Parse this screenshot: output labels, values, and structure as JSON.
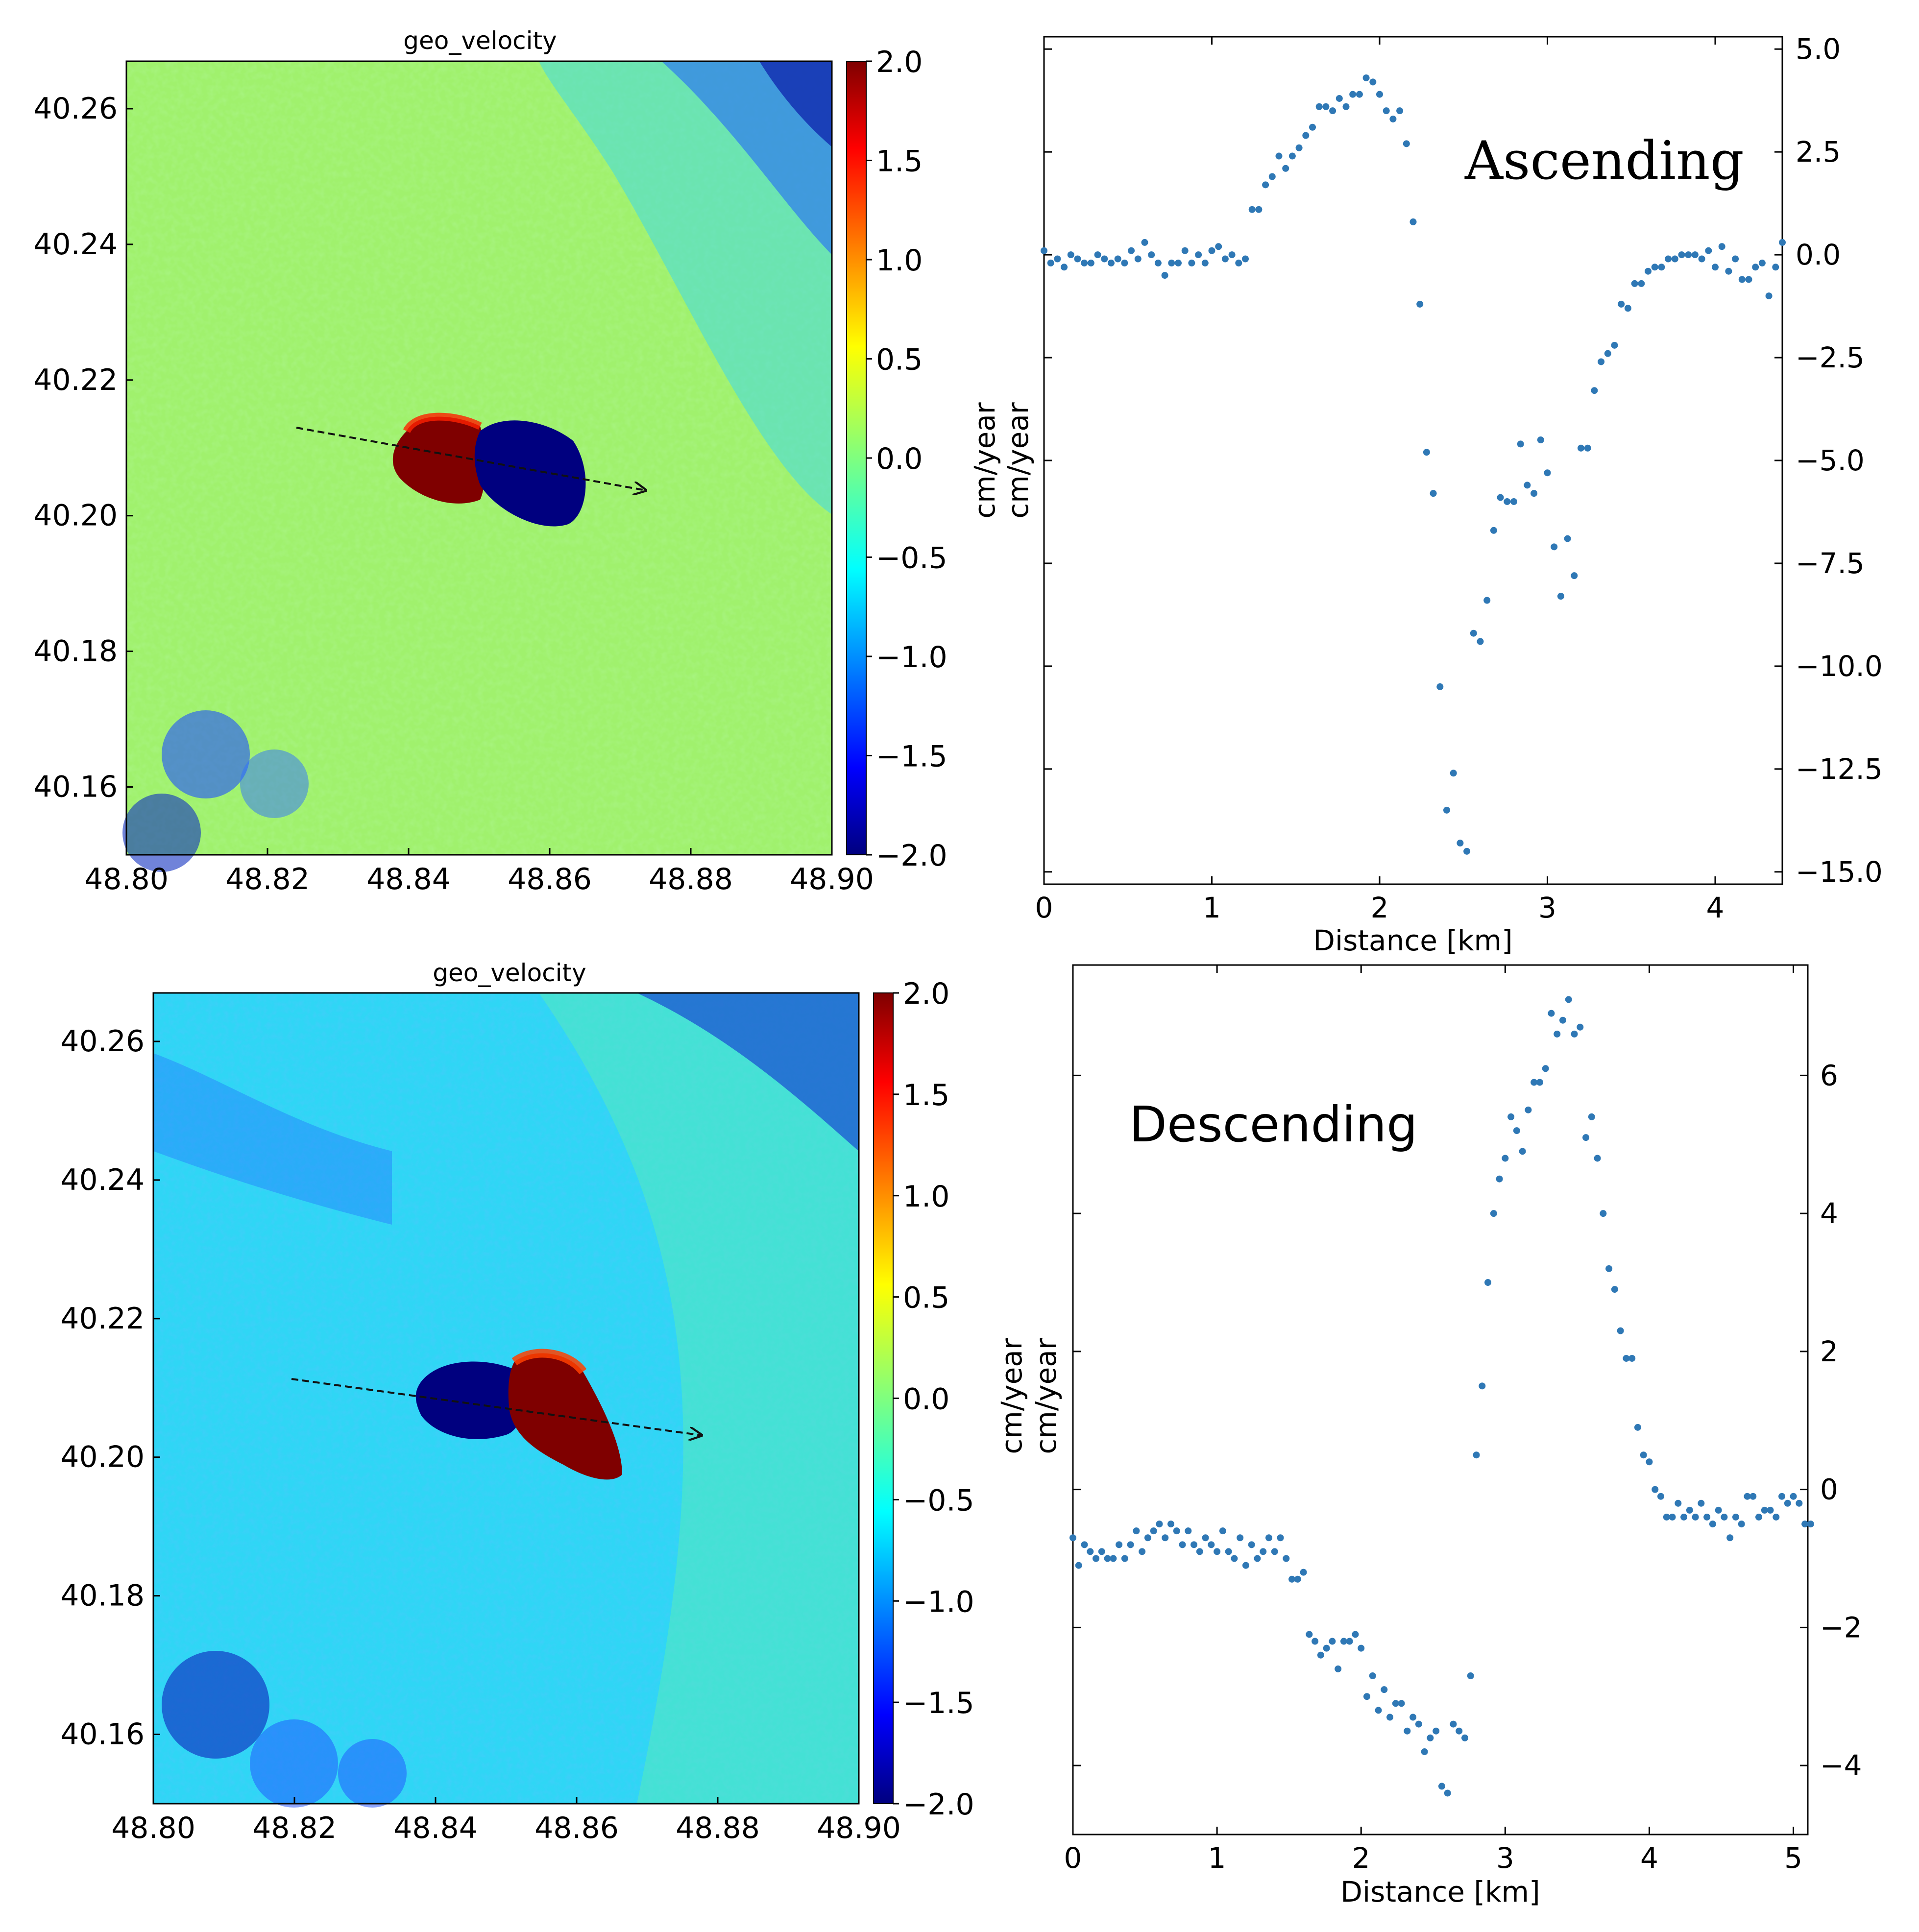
{
  "colors": {
    "point": "#2f78b5",
    "axis": "#000000",
    "arrow": "#111111",
    "colormap_jet": [
      "#00007f",
      "#0000ff",
      "#007fff",
      "#00ffff",
      "#7fff7f",
      "#ffff00",
      "#ff7f00",
      "#ff0000",
      "#7f0000"
    ]
  },
  "chart_data": [
    {
      "id": "map-ascending",
      "type": "heatmap",
      "title": "geo_velocity",
      "x_ticks": [
        "48.80",
        "48.82",
        "48.84",
        "48.86",
        "48.88",
        "48.90"
      ],
      "x_range": [
        48.8,
        48.9
      ],
      "y_ticks": [
        "40.16",
        "40.18",
        "40.20",
        "40.22",
        "40.24",
        "40.26"
      ],
      "y_range": [
        40.15,
        40.267
      ],
      "colorbar_ticks": [
        "2.0",
        "1.5",
        "1.0",
        "0.5",
        "0.0",
        "−0.5",
        "−1.0",
        "−1.5",
        "−2.0"
      ],
      "colorbar_range": [
        -2.0,
        2.0
      ],
      "background_value": 0.05,
      "profile_line": {
        "start": [
          48.824,
          40.2135
        ],
        "end": [
          48.874,
          40.2045
        ]
      },
      "anomalies": [
        {
          "lon": 48.845,
          "lat": 40.21,
          "value": 2.0
        },
        {
          "lon": 48.855,
          "lat": 40.208,
          "value": -2.0
        }
      ]
    },
    {
      "id": "profile-ascending",
      "type": "scatter",
      "label": "Ascending",
      "xlabel": "Distance [km]",
      "ylabel": "cm/year",
      "ylabel2": "cm/year",
      "xlim": [
        0,
        4.4
      ],
      "ylim": [
        -15.3,
        5.3
      ],
      "x_ticks": [
        0,
        1,
        2,
        3,
        4
      ],
      "y_ticks": [
        5.0,
        2.5,
        0.0,
        -2.5,
        -5.0,
        -7.5,
        -10.0,
        -12.5,
        -15.0
      ],
      "y_tick_labels": [
        "5.0",
        "2.5",
        "0.0",
        "−2.5",
        "−5.0",
        "−7.5",
        "−10.0",
        "−12.5",
        "−15.0"
      ],
      "points": [
        [
          0.0,
          0.1
        ],
        [
          0.04,
          -0.2
        ],
        [
          0.08,
          -0.1
        ],
        [
          0.12,
          -0.3
        ],
        [
          0.16,
          0.0
        ],
        [
          0.2,
          -0.1
        ],
        [
          0.24,
          -0.2
        ],
        [
          0.28,
          -0.2
        ],
        [
          0.32,
          0.0
        ],
        [
          0.36,
          -0.1
        ],
        [
          0.4,
          -0.2
        ],
        [
          0.44,
          -0.1
        ],
        [
          0.48,
          -0.2
        ],
        [
          0.52,
          0.1
        ],
        [
          0.56,
          -0.1
        ],
        [
          0.6,
          0.3
        ],
        [
          0.64,
          0.0
        ],
        [
          0.68,
          -0.2
        ],
        [
          0.72,
          -0.5
        ],
        [
          0.76,
          -0.2
        ],
        [
          0.8,
          -0.2
        ],
        [
          0.84,
          0.1
        ],
        [
          0.88,
          -0.2
        ],
        [
          0.92,
          0.0
        ],
        [
          0.96,
          -0.2
        ],
        [
          1.0,
          0.1
        ],
        [
          1.04,
          0.2
        ],
        [
          1.08,
          -0.1
        ],
        [
          1.12,
          0.0
        ],
        [
          1.16,
          -0.2
        ],
        [
          1.2,
          -0.1
        ],
        [
          1.24,
          1.1
        ],
        [
          1.28,
          1.1
        ],
        [
          1.32,
          1.7
        ],
        [
          1.36,
          1.9
        ],
        [
          1.4,
          2.4
        ],
        [
          1.44,
          2.1
        ],
        [
          1.48,
          2.4
        ],
        [
          1.52,
          2.6
        ],
        [
          1.56,
          2.9
        ],
        [
          1.6,
          3.1
        ],
        [
          1.64,
          3.6
        ],
        [
          1.68,
          3.6
        ],
        [
          1.72,
          3.5
        ],
        [
          1.76,
          3.8
        ],
        [
          1.8,
          3.6
        ],
        [
          1.84,
          3.9
        ],
        [
          1.88,
          3.9
        ],
        [
          1.92,
          4.3
        ],
        [
          1.96,
          4.2
        ],
        [
          2.0,
          3.9
        ],
        [
          2.04,
          3.5
        ],
        [
          2.08,
          3.3
        ],
        [
          2.12,
          3.5
        ],
        [
          2.16,
          2.7
        ],
        [
          2.2,
          0.8
        ],
        [
          2.24,
          -1.2
        ],
        [
          2.28,
          -4.8
        ],
        [
          2.32,
          -5.8
        ],
        [
          2.36,
          -10.5
        ],
        [
          2.4,
          -13.5
        ],
        [
          2.44,
          -12.6
        ],
        [
          2.48,
          -14.3
        ],
        [
          2.52,
          -14.5
        ],
        [
          2.56,
          -9.2
        ],
        [
          2.6,
          -9.4
        ],
        [
          2.64,
          -8.4
        ],
        [
          2.68,
          -6.7
        ],
        [
          2.72,
          -5.9
        ],
        [
          2.76,
          -6.0
        ],
        [
          2.8,
          -6.0
        ],
        [
          2.84,
          -4.6
        ],
        [
          2.88,
          -5.6
        ],
        [
          2.92,
          -5.8
        ],
        [
          2.96,
          -4.5
        ],
        [
          3.0,
          -5.3
        ],
        [
          3.04,
          -7.1
        ],
        [
          3.08,
          -8.3
        ],
        [
          3.12,
          -6.9
        ],
        [
          3.16,
          -7.8
        ],
        [
          3.2,
          -4.7
        ],
        [
          3.24,
          -4.7
        ],
        [
          3.28,
          -3.3
        ],
        [
          3.32,
          -2.6
        ],
        [
          3.36,
          -2.4
        ],
        [
          3.4,
          -2.2
        ],
        [
          3.44,
          -1.2
        ],
        [
          3.48,
          -1.3
        ],
        [
          3.52,
          -0.7
        ],
        [
          3.56,
          -0.7
        ],
        [
          3.6,
          -0.4
        ],
        [
          3.64,
          -0.3
        ],
        [
          3.68,
          -0.3
        ],
        [
          3.72,
          -0.1
        ],
        [
          3.76,
          -0.1
        ],
        [
          3.8,
          0.0
        ],
        [
          3.84,
          0.0
        ],
        [
          3.88,
          0.0
        ],
        [
          3.92,
          -0.1
        ],
        [
          3.96,
          0.1
        ],
        [
          4.0,
          -0.3
        ],
        [
          4.04,
          0.2
        ],
        [
          4.08,
          -0.4
        ],
        [
          4.12,
          -0.1
        ],
        [
          4.16,
          -0.6
        ],
        [
          4.2,
          -0.6
        ],
        [
          4.24,
          -0.3
        ],
        [
          4.28,
          -0.2
        ],
        [
          4.32,
          -1.0
        ],
        [
          4.36,
          -0.3
        ],
        [
          4.4,
          0.3
        ]
      ]
    },
    {
      "id": "map-descending",
      "type": "heatmap",
      "title": "geo_velocity",
      "x_ticks": [
        "48.80",
        "48.82",
        "48.84",
        "48.86",
        "48.88",
        "48.90"
      ],
      "x_range": [
        48.8,
        48.9
      ],
      "y_ticks": [
        "40.16",
        "40.18",
        "40.20",
        "40.22",
        "40.24",
        "40.26"
      ],
      "y_range": [
        40.15,
        40.267
      ],
      "colorbar_ticks": [
        "2.0",
        "1.5",
        "1.0",
        "0.5",
        "0.0",
        "−0.5",
        "−1.0",
        "−1.5",
        "−2.0"
      ],
      "colorbar_range": [
        -2.0,
        2.0
      ],
      "background_value": -0.45,
      "profile_line": {
        "start": [
          48.82,
          40.2115
        ],
        "end": [
          48.878,
          40.2035
        ]
      },
      "anomalies": [
        {
          "lon": 48.85,
          "lat": 40.209,
          "value": -2.0
        },
        {
          "lon": 48.861,
          "lat": 40.206,
          "value": 2.0
        }
      ]
    },
    {
      "id": "profile-descending",
      "type": "scatter",
      "label": "Descending",
      "xlabel": "Distance [km]",
      "ylabel": "cm/year",
      "ylabel2": "cm/year",
      "xlim": [
        0,
        5.1
      ],
      "ylim": [
        -5.0,
        7.6
      ],
      "x_ticks": [
        0,
        1,
        2,
        3,
        4,
        5
      ],
      "y_ticks": [
        6,
        4,
        2,
        0,
        -2,
        -4
      ],
      "y_tick_labels": [
        "6",
        "4",
        "2",
        "0",
        "−2",
        "−4"
      ],
      "points": [
        [
          0.0,
          -0.7
        ],
        [
          0.04,
          -1.1
        ],
        [
          0.08,
          -0.8
        ],
        [
          0.12,
          -0.9
        ],
        [
          0.16,
          -1.0
        ],
        [
          0.2,
          -0.9
        ],
        [
          0.24,
          -1.0
        ],
        [
          0.28,
          -1.0
        ],
        [
          0.32,
          -0.8
        ],
        [
          0.36,
          -1.0
        ],
        [
          0.4,
          -0.8
        ],
        [
          0.44,
          -0.6
        ],
        [
          0.48,
          -0.9
        ],
        [
          0.52,
          -0.7
        ],
        [
          0.56,
          -0.6
        ],
        [
          0.6,
          -0.5
        ],
        [
          0.64,
          -0.7
        ],
        [
          0.68,
          -0.5
        ],
        [
          0.72,
          -0.6
        ],
        [
          0.76,
          -0.8
        ],
        [
          0.8,
          -0.6
        ],
        [
          0.84,
          -0.8
        ],
        [
          0.88,
          -0.9
        ],
        [
          0.92,
          -0.7
        ],
        [
          0.96,
          -0.8
        ],
        [
          1.0,
          -0.9
        ],
        [
          1.04,
          -0.6
        ],
        [
          1.08,
          -0.9
        ],
        [
          1.12,
          -1.0
        ],
        [
          1.16,
          -0.7
        ],
        [
          1.2,
          -1.1
        ],
        [
          1.24,
          -0.8
        ],
        [
          1.28,
          -1.0
        ],
        [
          1.32,
          -0.9
        ],
        [
          1.36,
          -0.7
        ],
        [
          1.4,
          -0.9
        ],
        [
          1.44,
          -0.7
        ],
        [
          1.48,
          -1.0
        ],
        [
          1.52,
          -1.3
        ],
        [
          1.56,
          -1.3
        ],
        [
          1.6,
          -1.2
        ],
        [
          1.64,
          -2.1
        ],
        [
          1.68,
          -2.2
        ],
        [
          1.72,
          -2.4
        ],
        [
          1.76,
          -2.3
        ],
        [
          1.8,
          -2.2
        ],
        [
          1.84,
          -2.6
        ],
        [
          1.88,
          -2.2
        ],
        [
          1.92,
          -2.2
        ],
        [
          1.96,
          -2.1
        ],
        [
          2.0,
          -2.3
        ],
        [
          2.04,
          -3.0
        ],
        [
          2.08,
          -2.7
        ],
        [
          2.12,
          -3.2
        ],
        [
          2.16,
          -2.9
        ],
        [
          2.2,
          -3.3
        ],
        [
          2.24,
          -3.1
        ],
        [
          2.28,
          -3.1
        ],
        [
          2.32,
          -3.5
        ],
        [
          2.36,
          -3.3
        ],
        [
          2.4,
          -3.4
        ],
        [
          2.44,
          -3.8
        ],
        [
          2.48,
          -3.6
        ],
        [
          2.52,
          -3.5
        ],
        [
          2.56,
          -4.3
        ],
        [
          2.6,
          -4.4
        ],
        [
          2.64,
          -3.4
        ],
        [
          2.68,
          -3.5
        ],
        [
          2.72,
          -3.6
        ],
        [
          2.76,
          -2.7
        ],
        [
          2.8,
          0.5
        ],
        [
          2.84,
          1.5
        ],
        [
          2.88,
          3.0
        ],
        [
          2.92,
          4.0
        ],
        [
          2.96,
          4.5
        ],
        [
          3.0,
          4.8
        ],
        [
          3.04,
          5.4
        ],
        [
          3.08,
          5.2
        ],
        [
          3.12,
          4.9
        ],
        [
          3.16,
          5.5
        ],
        [
          3.2,
          5.9
        ],
        [
          3.24,
          5.9
        ],
        [
          3.28,
          6.1
        ],
        [
          3.32,
          6.9
        ],
        [
          3.36,
          6.6
        ],
        [
          3.4,
          6.8
        ],
        [
          3.44,
          7.1
        ],
        [
          3.48,
          6.6
        ],
        [
          3.52,
          6.7
        ],
        [
          3.56,
          5.1
        ],
        [
          3.6,
          5.4
        ],
        [
          3.64,
          4.8
        ],
        [
          3.68,
          4.0
        ],
        [
          3.72,
          3.2
        ],
        [
          3.76,
          2.9
        ],
        [
          3.8,
          2.3
        ],
        [
          3.84,
          1.9
        ],
        [
          3.88,
          1.9
        ],
        [
          3.92,
          0.9
        ],
        [
          3.96,
          0.5
        ],
        [
          4.0,
          0.4
        ],
        [
          4.04,
          0.0
        ],
        [
          4.08,
          -0.1
        ],
        [
          4.12,
          -0.4
        ],
        [
          4.16,
          -0.4
        ],
        [
          4.2,
          -0.2
        ],
        [
          4.24,
          -0.4
        ],
        [
          4.28,
          -0.3
        ],
        [
          4.32,
          -0.4
        ],
        [
          4.36,
          -0.2
        ],
        [
          4.4,
          -0.4
        ],
        [
          4.44,
          -0.5
        ],
        [
          4.48,
          -0.3
        ],
        [
          4.52,
          -0.4
        ],
        [
          4.56,
          -0.7
        ],
        [
          4.6,
          -0.4
        ],
        [
          4.64,
          -0.5
        ],
        [
          4.68,
          -0.1
        ],
        [
          4.72,
          -0.1
        ],
        [
          4.76,
          -0.4
        ],
        [
          4.8,
          -0.3
        ],
        [
          4.84,
          -0.3
        ],
        [
          4.88,
          -0.4
        ],
        [
          4.92,
          -0.1
        ],
        [
          4.96,
          -0.2
        ],
        [
          5.0,
          -0.1
        ],
        [
          5.04,
          -0.2
        ],
        [
          5.08,
          -0.5
        ],
        [
          5.12,
          -0.5
        ]
      ]
    }
  ]
}
